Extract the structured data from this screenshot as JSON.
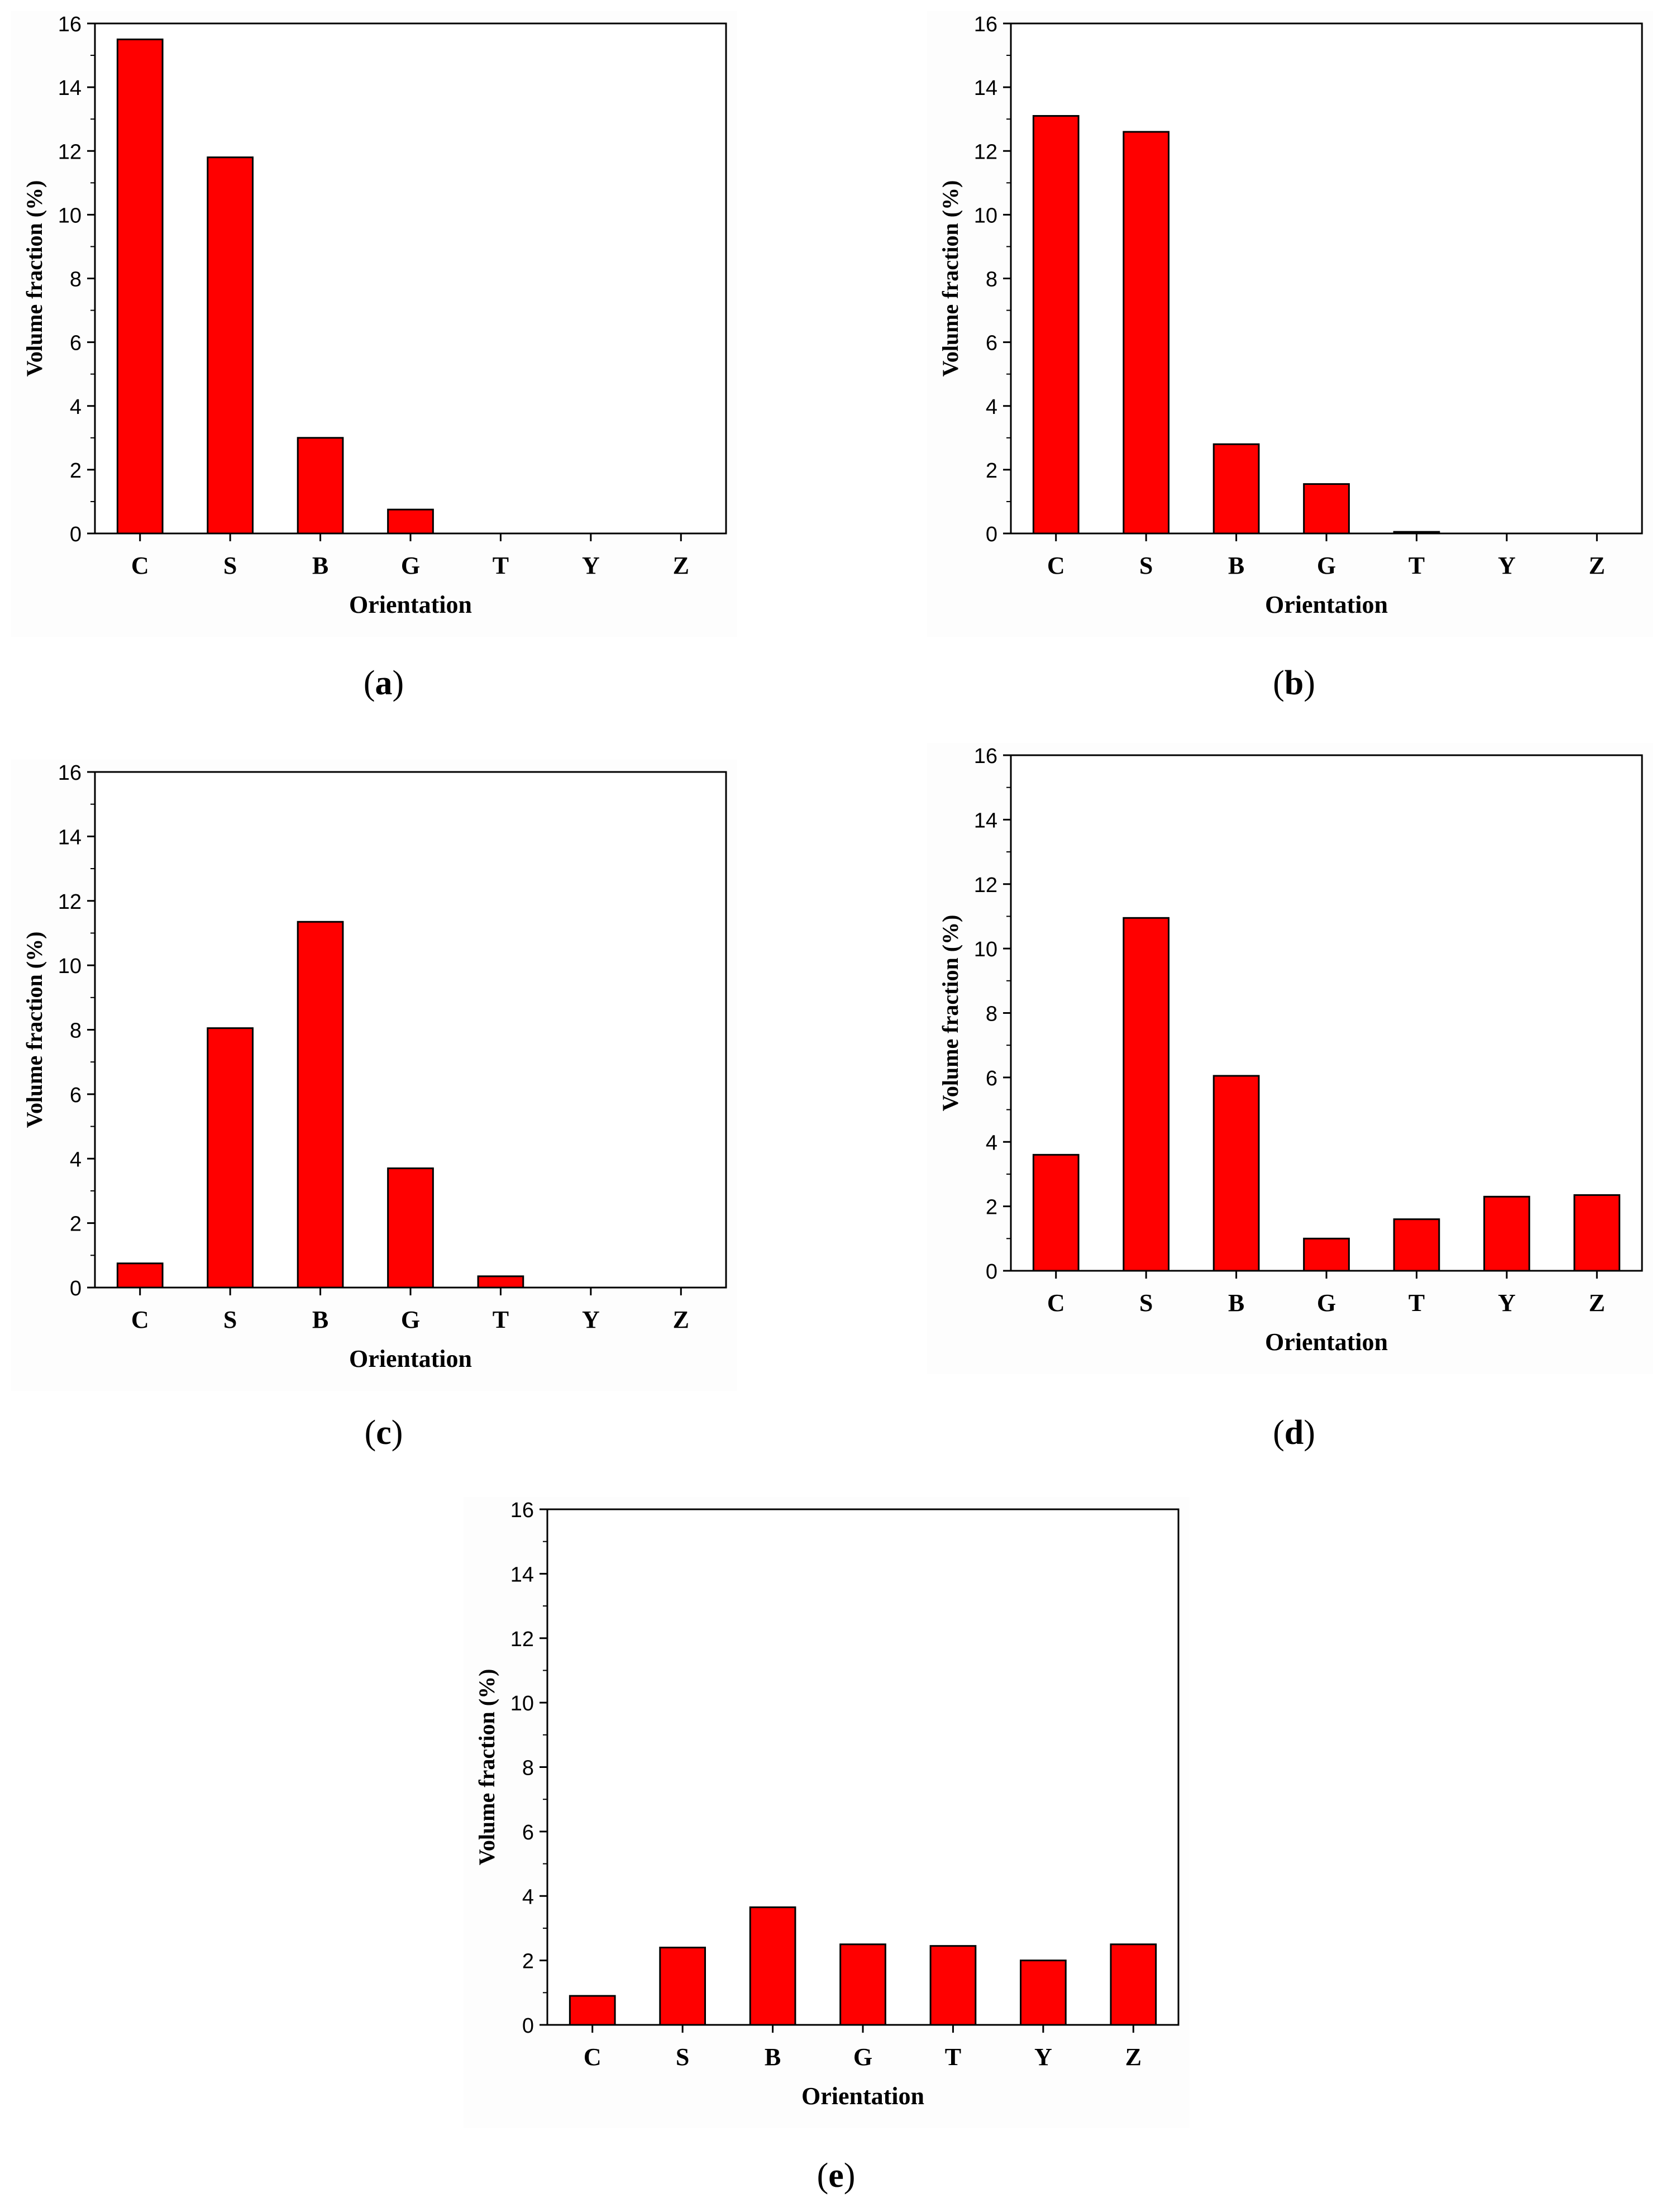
{
  "colors": {
    "bar": "#ff0000",
    "bar_edge": "#000000",
    "axis": "#000000"
  },
  "chart_data": [
    {
      "id": "a",
      "caption": "a",
      "type": "bar",
      "categories": [
        "C",
        "S",
        "B",
        "G",
        "T",
        "Y",
        "Z"
      ],
      "values": [
        15.5,
        11.8,
        3.0,
        0.75,
        0,
        0,
        0
      ],
      "xlabel": "Orientation",
      "ylabel": "Volume fraction (%)",
      "ylim": [
        0,
        16
      ],
      "yticks": [
        "0",
        "2",
        "4",
        "6",
        "8",
        "10",
        "12",
        "14",
        "16"
      ]
    },
    {
      "id": "b",
      "caption": "b",
      "type": "bar",
      "categories": [
        "C",
        "S",
        "B",
        "G",
        "T",
        "Y",
        "Z"
      ],
      "values": [
        13.1,
        12.6,
        2.8,
        1.55,
        0.05,
        0,
        0
      ],
      "xlabel": "Orientation",
      "ylabel": "Volume fraction (%)",
      "ylim": [
        0,
        16
      ],
      "yticks": [
        "0",
        "2",
        "4",
        "6",
        "8",
        "10",
        "12",
        "14",
        "16"
      ]
    },
    {
      "id": "c",
      "caption": "c",
      "type": "bar",
      "categories": [
        "C",
        "S",
        "B",
        "G",
        "T",
        "Y",
        "Z"
      ],
      "values": [
        0.75,
        8.05,
        11.35,
        3.7,
        0.35,
        0,
        0
      ],
      "xlabel": "Orientation",
      "ylabel": "Volume fraction (%)",
      "ylim": [
        0,
        16
      ],
      "yticks": [
        "0",
        "2",
        "4",
        "6",
        "8",
        "10",
        "12",
        "14",
        "16"
      ]
    },
    {
      "id": "d",
      "caption": "d",
      "type": "bar",
      "categories": [
        "C",
        "S",
        "B",
        "G",
        "T",
        "Y",
        "Z"
      ],
      "values": [
        3.6,
        10.95,
        6.05,
        1.0,
        1.6,
        2.3,
        2.35
      ],
      "xlabel": "Orientation",
      "ylabel": "Volume fraction (%)",
      "ylim": [
        0,
        16
      ],
      "yticks": [
        "0",
        "2",
        "4",
        "6",
        "8",
        "10",
        "12",
        "14",
        "16"
      ]
    },
    {
      "id": "e",
      "caption": "e",
      "type": "bar",
      "categories": [
        "C",
        "S",
        "B",
        "G",
        "T",
        "Y",
        "Z"
      ],
      "values": [
        0.9,
        2.4,
        3.65,
        2.5,
        2.45,
        2.0,
        2.5
      ],
      "xlabel": "Orientation",
      "ylabel": "Volume fraction (%)",
      "ylim": [
        0,
        16
      ],
      "yticks": [
        "0",
        "2",
        "4",
        "6",
        "8",
        "10",
        "12",
        "14",
        "16"
      ]
    }
  ]
}
